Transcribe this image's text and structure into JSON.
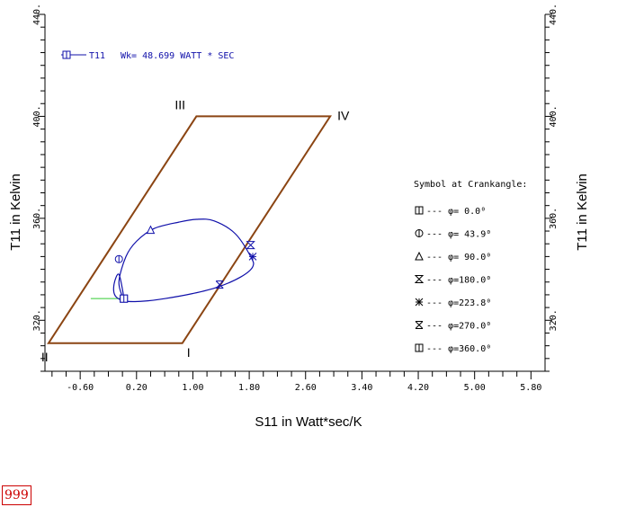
{
  "chart_data": {
    "type": "line",
    "title": "",
    "xlabel": "S11  in  Watt*sec/K",
    "ylabel_left": "T11  in  Kelvin",
    "ylabel_right": "T11  in  Kelvin",
    "xlim": [
      -1.1,
      6.0
    ],
    "ylim": [
      300,
      440
    ],
    "x_ticks": [
      -0.6,
      0.2,
      1.0,
      1.8,
      2.6,
      3.4,
      4.2,
      5.0,
      5.8
    ],
    "x_tick_labels": [
      "-0.60",
      "0.20",
      "1.00",
      "1.80",
      "2.60",
      "3.40",
      "4.20",
      "5.00",
      "5.80"
    ],
    "y_tick_labels": [
      {
        "value": 320,
        "label": "320."
      },
      {
        "value": 360,
        "label": "360."
      },
      {
        "value": 400,
        "label": "400."
      },
      {
        "value": 440,
        "label": "440."
      }
    ],
    "legend_top": {
      "symbol_label": "T11",
      "text": "Wk= 48.699 WATT * SEC"
    },
    "reference_cycle": {
      "color": "#8B4513",
      "points": [
        {
          "label": "I",
          "x": 0.85,
          "y": 311
        },
        {
          "label": "II",
          "x": -1.05,
          "y": 311
        },
        {
          "label": "III",
          "x": 1.05,
          "y": 400
        },
        {
          "label": "IV",
          "x": 2.95,
          "y": 400
        }
      ]
    },
    "cycle_curve": {
      "color": "#1010aa",
      "x": [
        0.02,
        -0.05,
        0.05,
        0.2,
        0.45,
        0.8,
        1.05,
        1.3,
        1.6,
        1.82,
        1.85,
        1.68,
        1.35,
        1.0,
        0.6,
        0.3,
        0.05,
        -0.1,
        -0.12,
        -0.05,
        0.02
      ],
      "y": [
        328.5,
        335,
        345,
        351,
        356,
        358.5,
        359.6,
        359,
        354,
        345,
        341,
        337,
        333,
        330.5,
        328.5,
        327.5,
        327.5,
        329.5,
        334,
        338,
        328.5
      ]
    },
    "markers": [
      {
        "symbol": "square-bar",
        "label": "φ=  0.0°",
        "x": 0.02,
        "y": 328.5
      },
      {
        "symbol": "circle-bar",
        "label": "φ= 43.9°",
        "x": -0.05,
        "y": 344
      },
      {
        "symbol": "triangle",
        "label": "φ= 90.0°",
        "x": 0.4,
        "y": 355.5
      },
      {
        "symbol": "hourglass",
        "label": "φ=180.0°",
        "x": 1.82,
        "y": 349.5
      },
      {
        "symbol": "asterisk",
        "label": "φ=223.8°",
        "x": 1.85,
        "y": 345
      },
      {
        "symbol": "x-box",
        "label": "φ=270.0°",
        "x": 1.38,
        "y": 334
      },
      {
        "symbol": "square-bar",
        "label": "φ=360.0°",
        "x": 0.02,
        "y": 328.5
      }
    ],
    "green_segment": {
      "color": "#33cc33",
      "x": [
        -0.45,
        0.02
      ],
      "y": [
        328.5,
        328.5
      ]
    },
    "symbol_legend_title": "Symbol at Crankangle:",
    "symbol_legend_entries": [
      {
        "symbol": "square-bar",
        "text": "φ=  0.0⁰"
      },
      {
        "symbol": "circle-bar",
        "text": "φ= 43.9⁰"
      },
      {
        "symbol": "triangle",
        "text": "φ= 90.0⁰"
      },
      {
        "symbol": "hourglass",
        "text": "φ=180.0⁰"
      },
      {
        "symbol": "asterisk",
        "text": "φ=223.8⁰"
      },
      {
        "symbol": "x-box",
        "text": "φ=270.0⁰"
      },
      {
        "symbol": "square-bar",
        "text": "φ=360.0⁰"
      }
    ]
  },
  "page_number": "999"
}
